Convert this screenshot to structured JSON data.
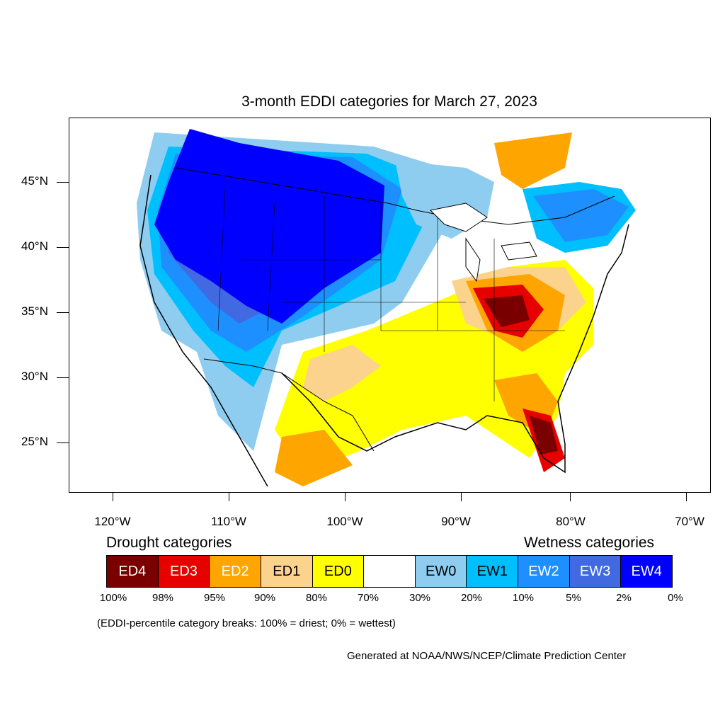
{
  "title": "3-month EDDI categories for March 27, 2023",
  "lat_labels": [
    "45°N",
    "40°N",
    "35°N",
    "30°N",
    "25°N"
  ],
  "lon_labels": [
    "120°W",
    "110°W",
    "100°W",
    "90°W",
    "80°W",
    "70°W"
  ],
  "legend": {
    "drought_heading": "Drought categories",
    "wetness_heading": "Wetness categories",
    "categories": [
      {
        "label": "ED4",
        "color": "#7a0000",
        "text_color": "#ffffff"
      },
      {
        "label": "ED3",
        "color": "#e60000",
        "text_color": "#ffffff"
      },
      {
        "label": "ED2",
        "color": "#ffa500",
        "text_color": "#ffffff"
      },
      {
        "label": "ED1",
        "color": "#fcd38c",
        "text_color": "#000000"
      },
      {
        "label": "ED0",
        "color": "#ffff00",
        "text_color": "#000000"
      },
      {
        "label": "",
        "color": "#ffffff",
        "text_color": "#000000"
      },
      {
        "label": "EW0",
        "color": "#8ecdf0",
        "text_color": "#000000"
      },
      {
        "label": "EW1",
        "color": "#00bfff",
        "text_color": "#000000"
      },
      {
        "label": "EW2",
        "color": "#1e8fff",
        "text_color": "#ffffff"
      },
      {
        "label": "EW3",
        "color": "#4169e1",
        "text_color": "#ffffff"
      },
      {
        "label": "EW4",
        "color": "#0000ff",
        "text_color": "#ffffff"
      }
    ],
    "percentiles": [
      "100%",
      "98%",
      "95%",
      "90%",
      "80%",
      "70%",
      "30%",
      "20%",
      "10%",
      "5%",
      "2%",
      "0%"
    ]
  },
  "breaks_note": "(EDDI-percentile category breaks: 100% = driest; 0% = wettest)",
  "credit": "Generated at NOAA/NWS/NCEP/Climate Prediction Center"
}
